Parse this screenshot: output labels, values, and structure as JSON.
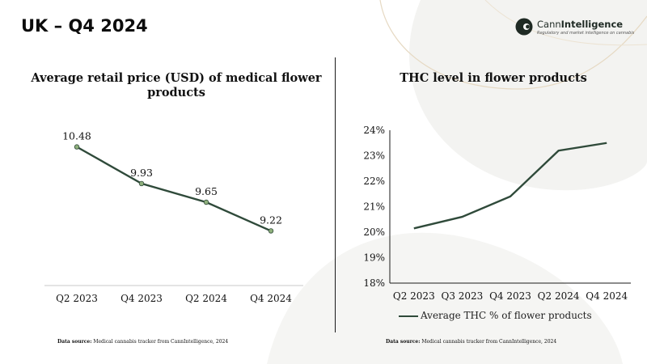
{
  "header": {
    "title": "UK – Q4 2024"
  },
  "logo": {
    "name_regular": "Cann",
    "name_bold": "Intelligence",
    "tagline": "Regulatory and market intelligence on cannabis"
  },
  "colors": {
    "line": "#2f4a3a",
    "marker": "#8fb07c",
    "decor": "#e6d9c3"
  },
  "chart_data": [
    {
      "type": "line",
      "title": "Average retail price (USD) of medical flower products",
      "categories": [
        "Q2 2023",
        "Q4 2023",
        "Q2 2024",
        "Q4 2024"
      ],
      "values": [
        10.48,
        9.93,
        9.65,
        9.22
      ],
      "value_labels": [
        "10.48",
        "9.93",
        "9.65",
        "9.22"
      ],
      "markers": true,
      "data_labels": true,
      "y_axis_visible": false,
      "ylim": [
        8.4,
        10.9
      ],
      "grid": false
    },
    {
      "type": "line",
      "title": "THC level in flower products",
      "categories": [
        "Q2 2023",
        "Q3 2023",
        "Q4 2023",
        "Q2 2024",
        "Q4 2024"
      ],
      "series": [
        {
          "name": "Average THC % of flower products",
          "values": [
            20.15,
            20.6,
            21.4,
            23.2,
            23.5
          ]
        }
      ],
      "y_ticks": [
        "18%",
        "19%",
        "20%",
        "21%",
        "22%",
        "23%",
        "24%"
      ],
      "ylim": [
        18,
        24
      ],
      "grid": false,
      "legend": "bottom"
    }
  ],
  "sources": [
    {
      "label": "Data source:",
      "text": "Medical cannabis tracker from CannIntelligence, 2024"
    },
    {
      "label": "Data source:",
      "text": "Medical cannabis tracker from CannIntelligence, 2024"
    }
  ]
}
